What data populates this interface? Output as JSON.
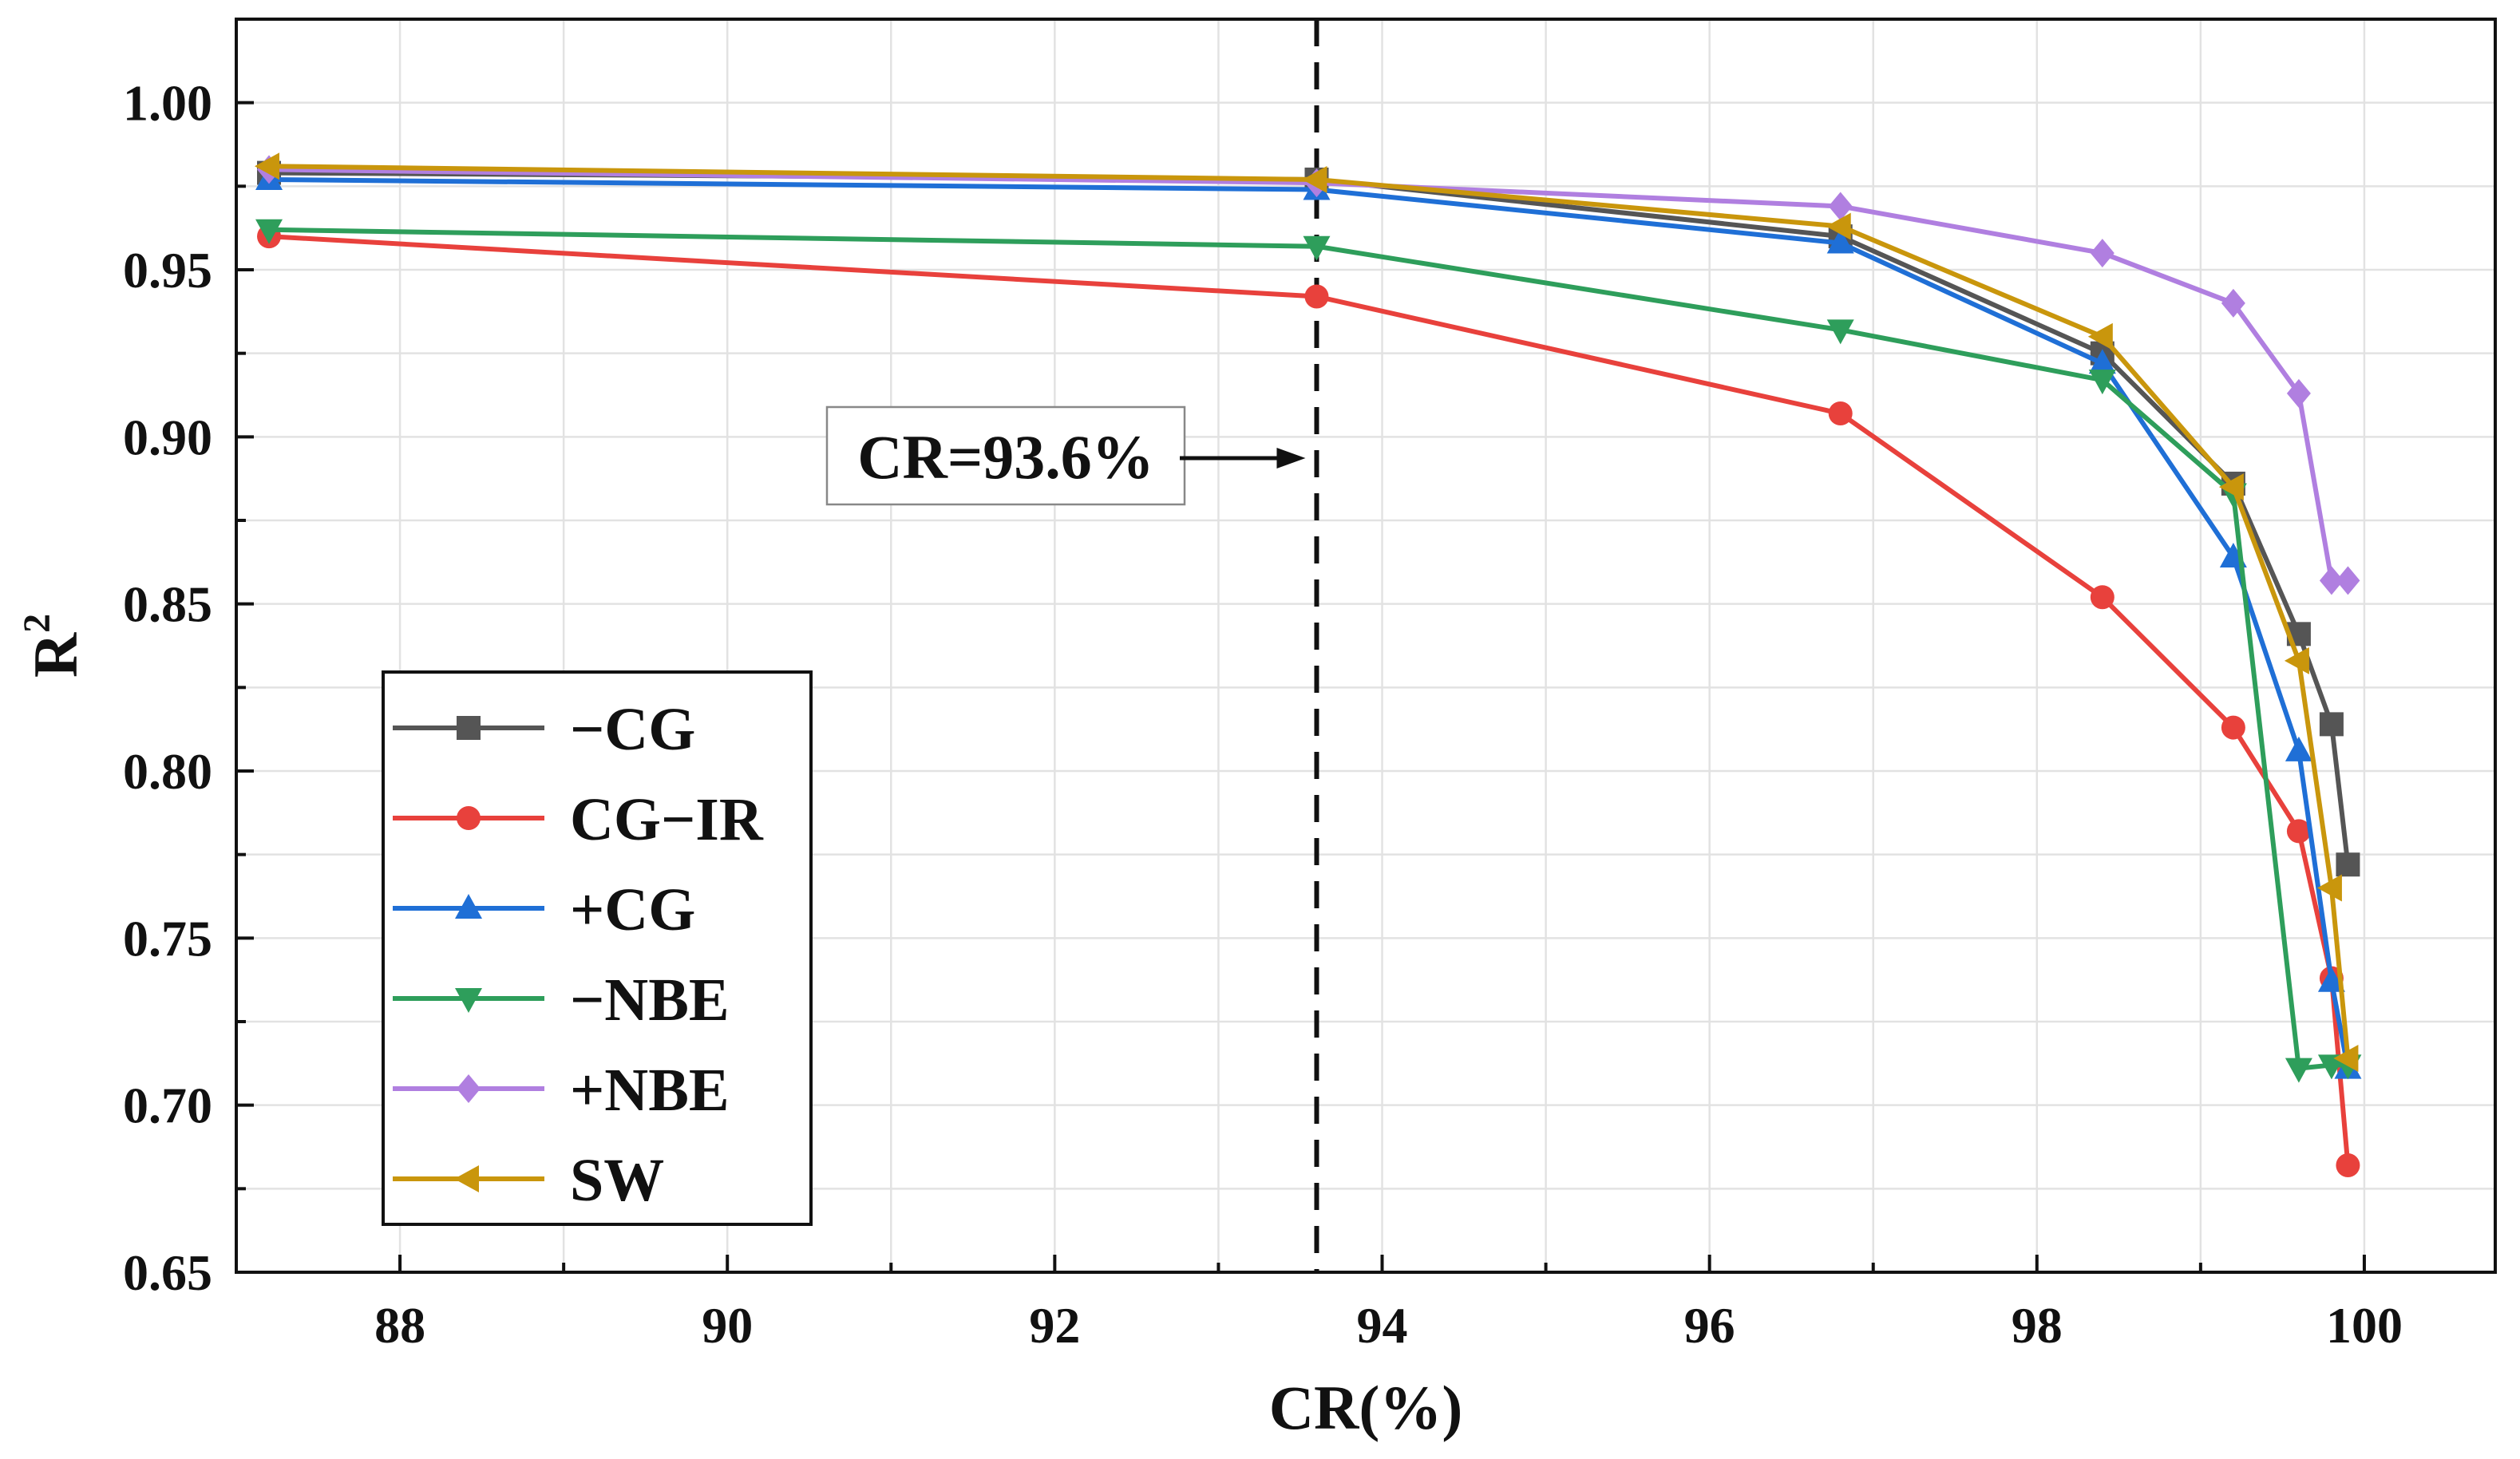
{
  "chart_data": {
    "type": "line",
    "title": "",
    "xlabel": "CR(%)",
    "ylabel": "R",
    "ylabel_superscript": "2",
    "xlim": [
      87,
      100.8
    ],
    "ylim": [
      0.65,
      1.025
    ],
    "xticks": [
      88,
      90,
      92,
      94,
      96,
      98,
      100
    ],
    "xtick_labels": [
      "88",
      "90",
      "92",
      "94",
      "96",
      "98",
      "100"
    ],
    "yticks": [
      0.65,
      0.7,
      0.75,
      0.8,
      0.85,
      0.9,
      0.95,
      1.0
    ],
    "ytick_labels": [
      "0.65",
      "0.70",
      "0.75",
      "0.80",
      "0.85",
      "0.90",
      "0.95",
      "1.00"
    ],
    "grid": true,
    "legend_position": "bottom-left",
    "x": [
      87.2,
      93.6,
      96.8,
      98.4,
      99.2,
      99.6,
      99.8,
      99.9
    ],
    "series": [
      {
        "name": "−CG",
        "color": "#555555",
        "marker": "square",
        "values": [
          0.979,
          0.977,
          0.96,
          0.925,
          0.886,
          0.841,
          0.814,
          0.772
        ]
      },
      {
        "name": "CG−IR",
        "color": "#e8413c",
        "marker": "circle",
        "values": [
          0.96,
          0.942,
          0.907,
          0.852,
          0.813,
          0.782,
          0.738,
          0.682
        ]
      },
      {
        "name": "+CG",
        "color": "#1f6fd6",
        "marker": "triangle-up",
        "values": [
          0.977,
          0.974,
          0.958,
          0.922,
          0.864,
          0.806,
          0.737,
          0.711
        ]
      },
      {
        "name": "−NBE",
        "color": "#2e9e5b",
        "marker": "triangle-down",
        "values": [
          0.962,
          0.957,
          0.932,
          0.917,
          0.883,
          0.711,
          0.712,
          0.712
        ]
      },
      {
        "name": "+NBE",
        "color": "#b07fe0",
        "marker": "diamond",
        "values": [
          0.98,
          0.976,
          0.969,
          0.955,
          0.94,
          0.913,
          0.857,
          0.857
        ]
      },
      {
        "name": "SW",
        "color": "#c9960c",
        "marker": "triangle-left",
        "values": [
          0.981,
          0.977,
          0.963,
          0.93,
          0.885,
          0.833,
          0.765,
          0.714
        ]
      }
    ],
    "annotations": [
      {
        "text": "CR=93.6%",
        "x": 93.6,
        "type": "vertical-dashed-line"
      }
    ]
  }
}
